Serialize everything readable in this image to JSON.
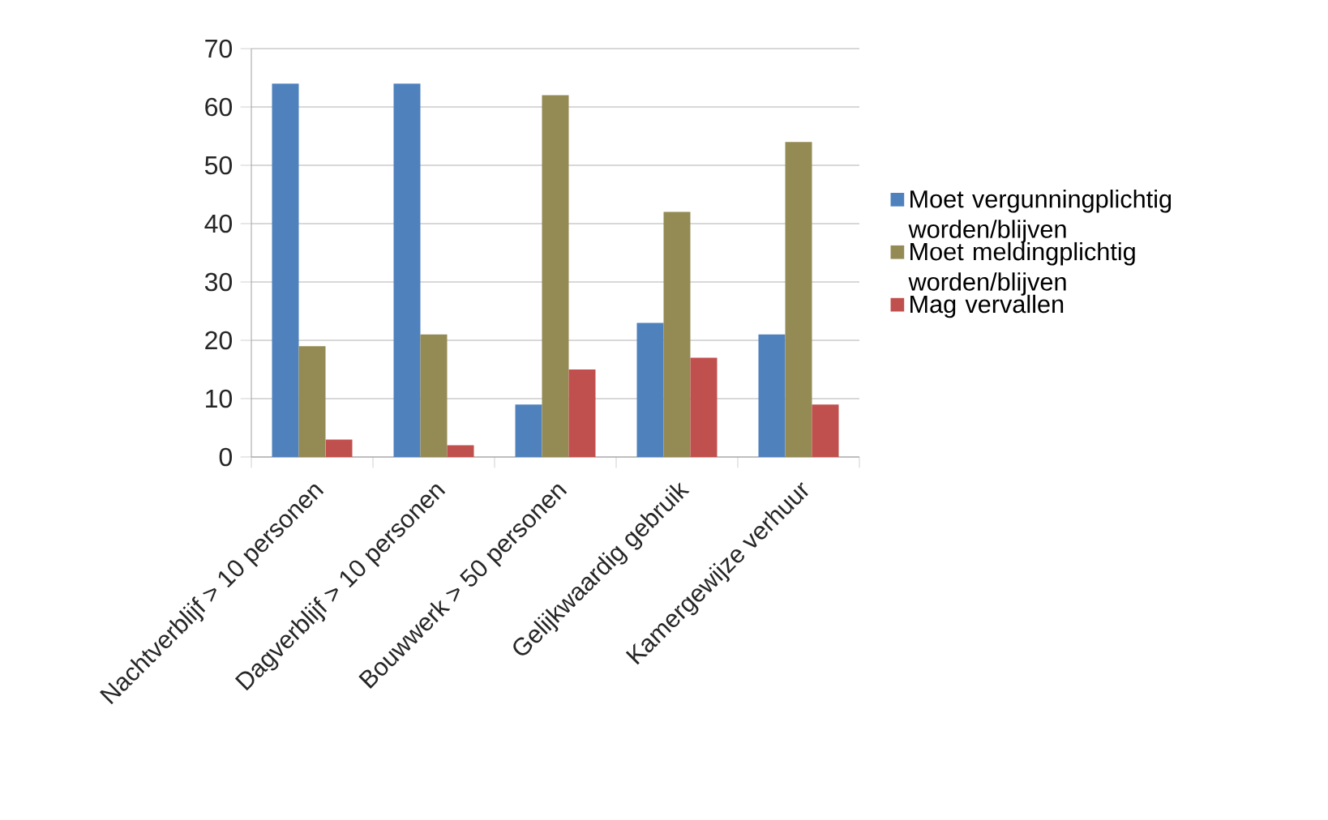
{
  "chart_data": {
    "type": "bar",
    "categories": [
      "Nachtverblijf > 10 personen",
      "Dagverblijf > 10 personen",
      "Bouwwerk > 50 personen",
      "Gelijkwaardig gebruik",
      "Kamergewijze verhuur"
    ],
    "series": [
      {
        "name": "Moet vergunningplichtig worden/blijven",
        "color": "#4f81bd",
        "values": [
          64,
          64,
          9,
          23,
          21
        ]
      },
      {
        "name": "Moet meldingplichtig worden/blijven",
        "color": "#948a54",
        "values": [
          19,
          21,
          62,
          42,
          54
        ]
      },
      {
        "name": "Mag vervallen",
        "color": "#c0504d",
        "values": [
          3,
          2,
          15,
          17,
          9
        ]
      }
    ],
    "ylim": [
      0,
      70
    ],
    "yticks": [
      0,
      10,
      20,
      30,
      40,
      50,
      60,
      70
    ],
    "grid": "y",
    "legend": "right"
  }
}
